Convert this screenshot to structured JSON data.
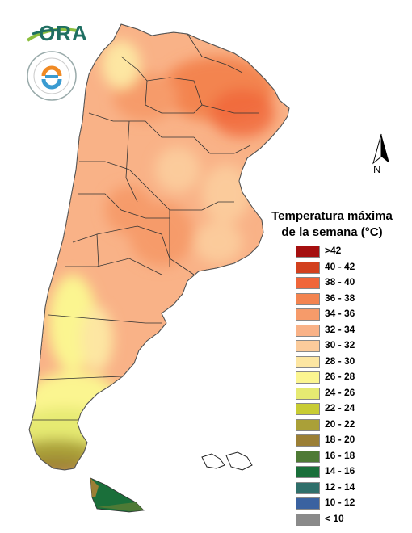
{
  "legend": {
    "title_line1": "Temperatura máxima",
    "title_line2": "de la semana (°C)",
    "items": [
      {
        "label": ">42",
        "color": "#a50f0f"
      },
      {
        "label": "40 - 42",
        "color": "#d2401e"
      },
      {
        "label": "38 - 40",
        "color": "#f0663a"
      },
      {
        "label": "36 - 38",
        "color": "#f38450"
      },
      {
        "label": "34 - 36",
        "color": "#f69b6a"
      },
      {
        "label": "32 - 34",
        "color": "#f9b287"
      },
      {
        "label": "30 - 32",
        "color": "#fbcb9b"
      },
      {
        "label": "28 - 30",
        "color": "#fde6a2"
      },
      {
        "label": "26 - 28",
        "color": "#fbf590"
      },
      {
        "label": "24 - 26",
        "color": "#e6ea72"
      },
      {
        "label": "22 - 24",
        "color": "#c8cc34"
      },
      {
        "label": "20 - 22",
        "color": "#aaa038"
      },
      {
        "label": "18 - 20",
        "color": "#9b7f35"
      },
      {
        "label": "16 - 18",
        "color": "#4e7a35"
      },
      {
        "label": "14 - 16",
        "color": "#1a6f3a"
      },
      {
        "label": "12 - 14",
        "color": "#2f6f6a"
      },
      {
        "label": "10 - 12",
        "color": "#3a62a0"
      },
      {
        "label": "< 10",
        "color": "#8a8a8a"
      }
    ]
  },
  "north_arrow": {
    "label": "N"
  },
  "logos": {
    "ora": "ORA",
    "smn_icon": "smn-seal-icon"
  }
}
